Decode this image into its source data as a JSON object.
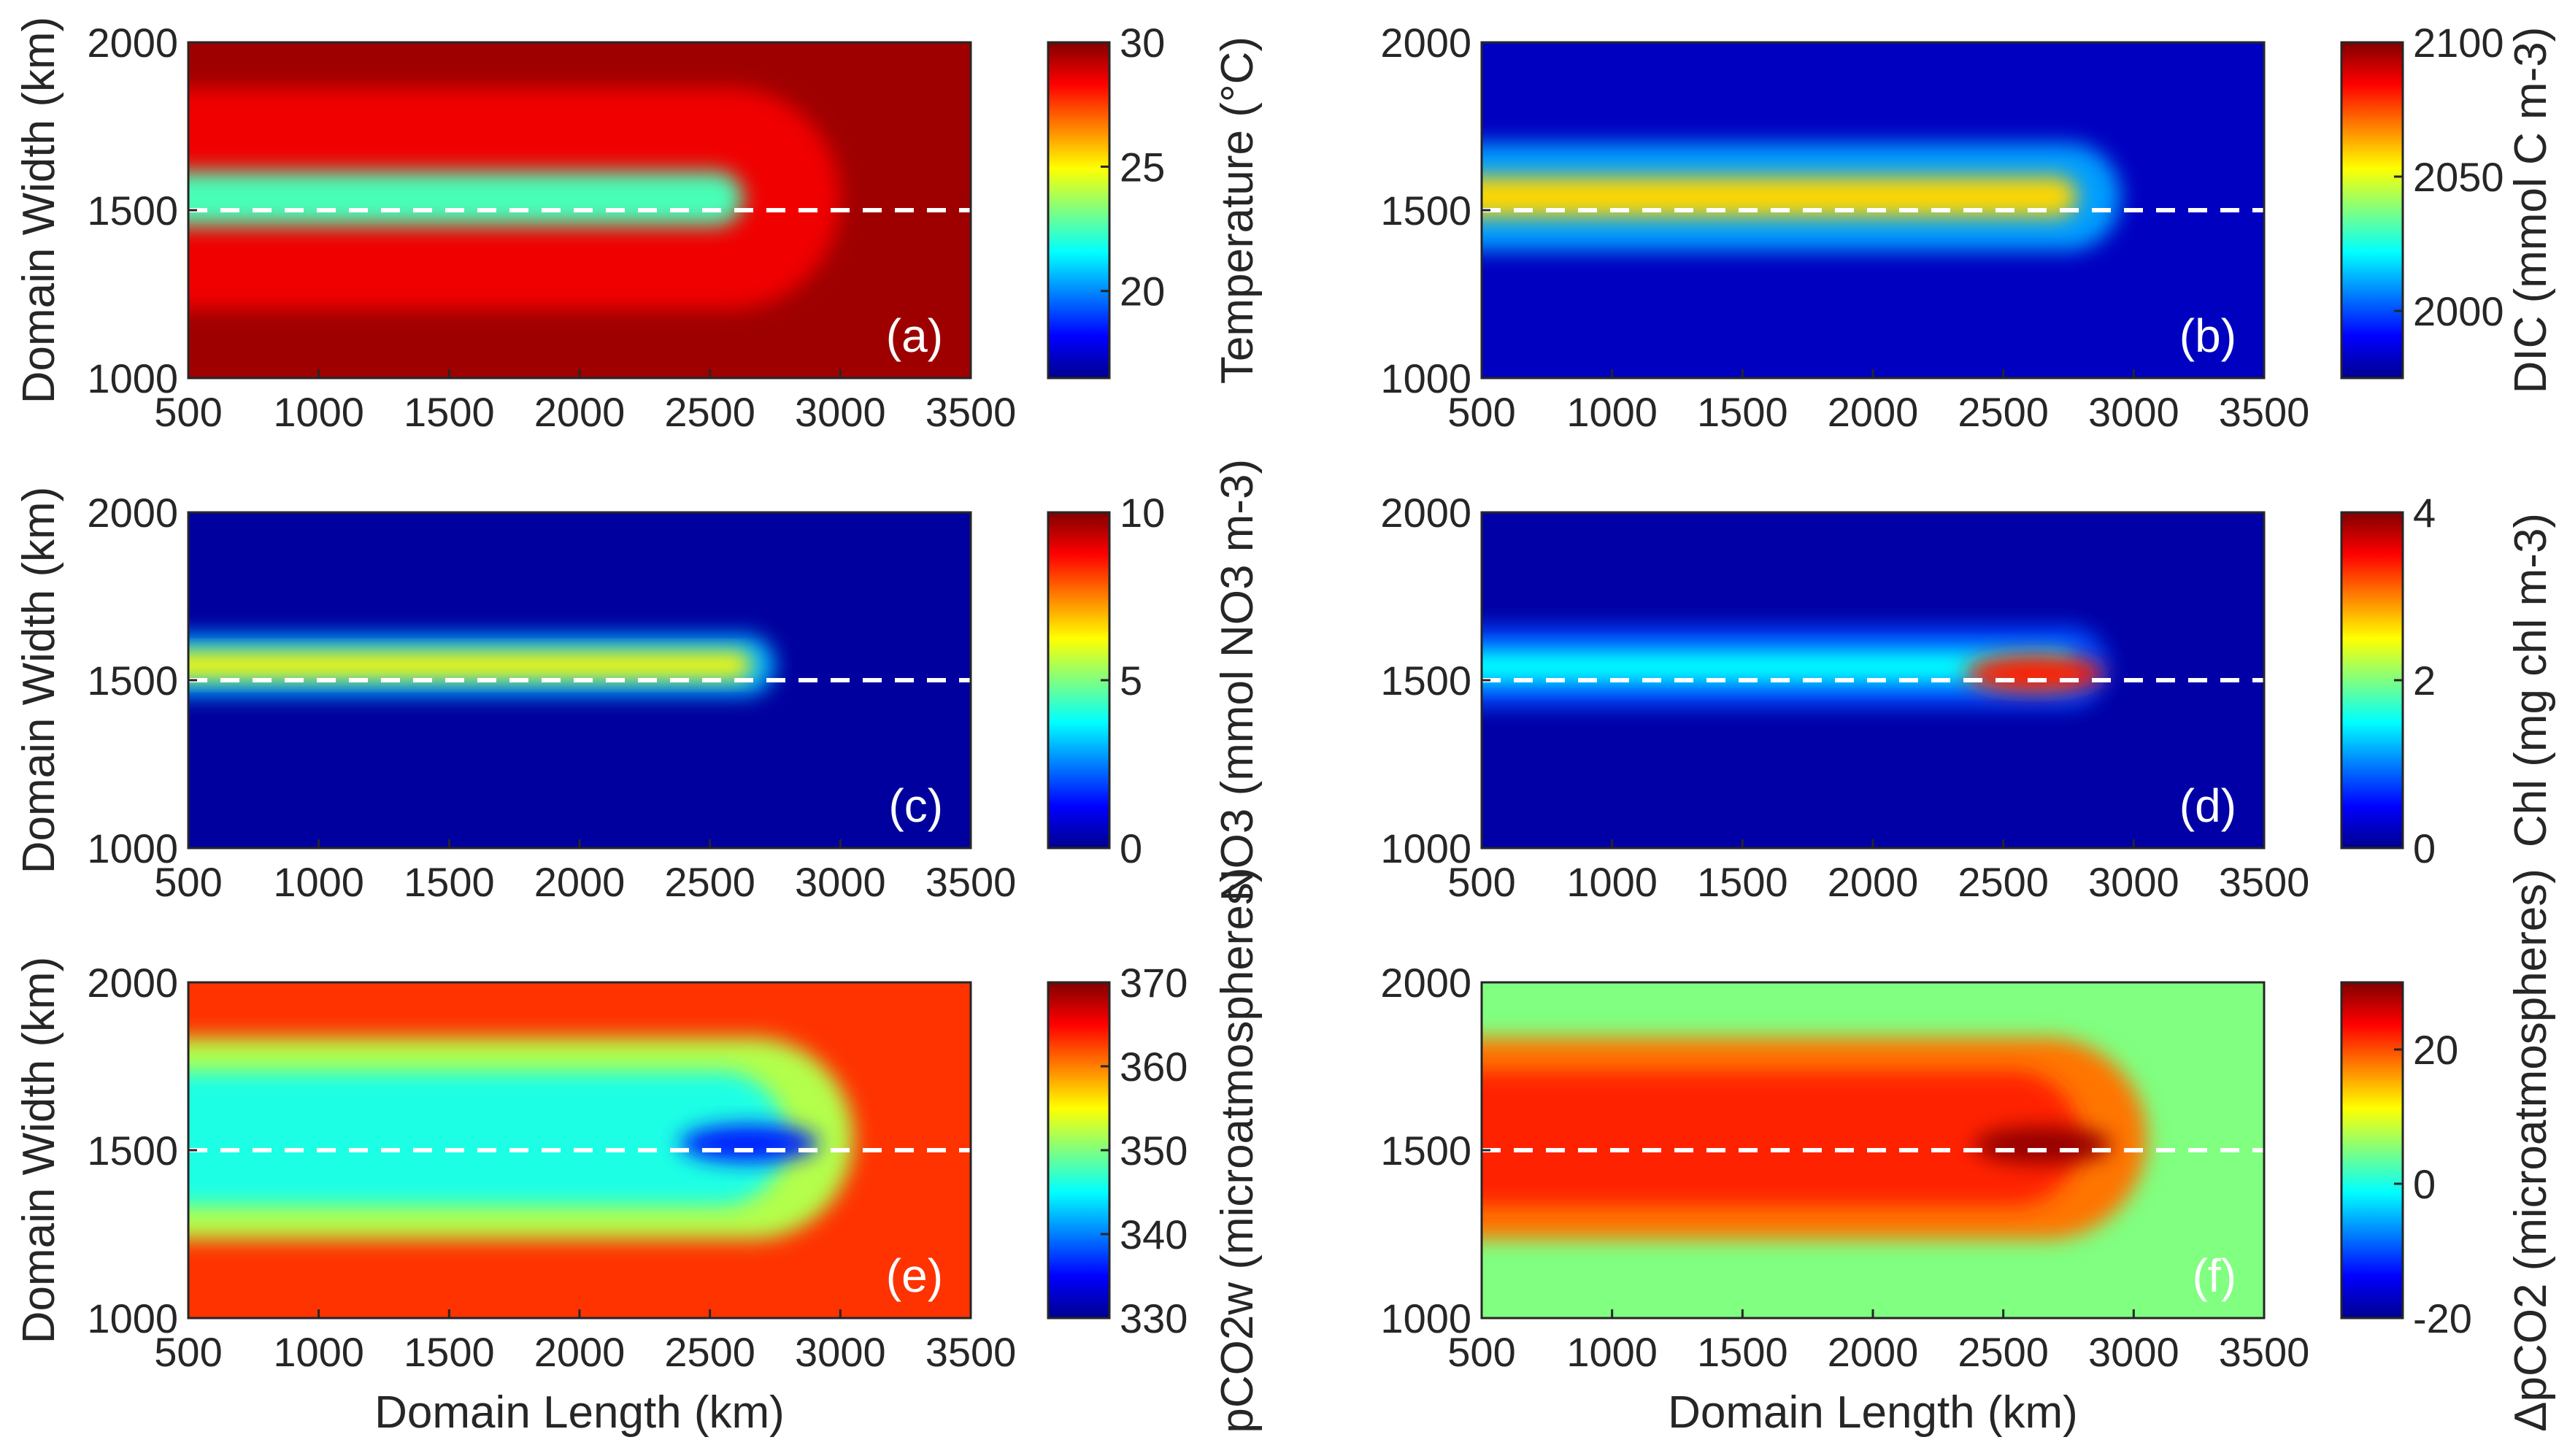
{
  "chart_data": [
    {
      "type": "heatmap",
      "panel_label": "(a)",
      "xlabel": "",
      "ylabel": "Domain Width (km)",
      "xlim": [
        500,
        3500
      ],
      "ylim": [
        1000,
        2000
      ],
      "x_ticks": [
        "500",
        "1000",
        "1500",
        "2000",
        "2500",
        "3000",
        "3500"
      ],
      "y_ticks": [
        "1000",
        "1500",
        "2000"
      ],
      "colorbar_label": "Temperature (°C)",
      "clim": [
        16.5,
        30
      ],
      "colorbar_ticks": [
        "20",
        "25",
        "30"
      ],
      "reference_line_y": 1500,
      "background_value": 29.6,
      "plume": {
        "x_start": 500,
        "x_end": 3000,
        "y_center": 1535,
        "core_half_width": 80,
        "outer_half_width": 330,
        "core_value": 22.5,
        "edge_value": 28.5,
        "hotspot": null
      }
    },
    {
      "type": "heatmap",
      "panel_label": "(b)",
      "xlabel": "",
      "ylabel": "",
      "xlim": [
        500,
        3500
      ],
      "ylim": [
        1000,
        2000
      ],
      "x_ticks": [
        "500",
        "1000",
        "1500",
        "2000",
        "2500",
        "3000",
        "3500"
      ],
      "y_ticks": [
        "1000",
        "1500",
        "2000"
      ],
      "colorbar_label": "DIC (mmol C m-3)",
      "clim": [
        1975,
        2100
      ],
      "colorbar_ticks": [
        "2000",
        "2050",
        "2100"
      ],
      "reference_line_y": 1500,
      "background_value": 1983,
      "plume": {
        "x_start": 500,
        "x_end": 2950,
        "y_center": 1540,
        "core_half_width": 60,
        "outer_half_width": 160,
        "core_value": 2058,
        "edge_value": 2010,
        "hotspot": null
      }
    },
    {
      "type": "heatmap",
      "panel_label": "(c)",
      "xlabel": "",
      "ylabel": "Domain Width (km)",
      "xlim": [
        500,
        3500
      ],
      "ylim": [
        1000,
        2000
      ],
      "x_ticks": [
        "500",
        "1000",
        "1500",
        "2000",
        "2500",
        "3000",
        "3500"
      ],
      "y_ticks": [
        "1000",
        "1500",
        "2000"
      ],
      "colorbar_label": "NO3 (mmol NO3 m-3)",
      "clim": [
        0,
        10
      ],
      "colorbar_ticks": [
        "0",
        "5",
        "10"
      ],
      "reference_line_y": 1500,
      "background_value": 0.3,
      "plume": {
        "x_start": 500,
        "x_end": 2750,
        "y_center": 1545,
        "core_half_width": 40,
        "outer_half_width": 90,
        "core_value": 6.3,
        "edge_value": 3,
        "hotspot": null
      }
    },
    {
      "type": "heatmap",
      "panel_label": "(d)",
      "xlabel": "",
      "ylabel": "",
      "xlim": [
        500,
        3500
      ],
      "ylim": [
        1000,
        2000
      ],
      "x_ticks": [
        "500",
        "1000",
        "1500",
        "2000",
        "2500",
        "3000",
        "3500"
      ],
      "y_ticks": [
        "1000",
        "1500",
        "2000"
      ],
      "colorbar_label": "Chl (mg chl m-3)",
      "clim": [
        0,
        4
      ],
      "colorbar_ticks": [
        "0",
        "2",
        "4"
      ],
      "reference_line_y": 1500,
      "background_value": 0.15,
      "plume": {
        "x_start": 500,
        "x_end": 2900,
        "y_center": 1540,
        "core_half_width": 50,
        "outer_half_width": 120,
        "core_value": 1.5,
        "edge_value": 0.8,
        "hotspot": {
          "x": 2620,
          "y": 1520,
          "value": 3.4
        }
      }
    },
    {
      "type": "heatmap",
      "panel_label": "(e)",
      "xlabel": "Domain Length (km)",
      "ylabel": "Domain Width (km)",
      "xlim": [
        500,
        3500
      ],
      "ylim": [
        1000,
        2000
      ],
      "x_ticks": [
        "500",
        "1000",
        "1500",
        "2000",
        "2500",
        "3000",
        "3500"
      ],
      "y_ticks": [
        "1000",
        "1500",
        "2000"
      ],
      "colorbar_label": "pCO2w (microatmospheres)",
      "clim": [
        330,
        370
      ],
      "colorbar_ticks": [
        "330",
        "340",
        "350",
        "360",
        "370"
      ],
      "reference_line_y": 1500,
      "background_value": 363,
      "plume": {
        "x_start": 500,
        "x_end": 3050,
        "y_center": 1535,
        "core_half_width": 200,
        "outer_half_width": 300,
        "core_value": 346,
        "edge_value": 352,
        "hotspot": {
          "x": 2650,
          "y": 1520,
          "value": 336
        }
      }
    },
    {
      "type": "heatmap",
      "panel_label": "(f)",
      "xlabel": "Domain Length (km)",
      "ylabel": "",
      "xlim": [
        500,
        3500
      ],
      "ylim": [
        1000,
        2000
      ],
      "x_ticks": [
        "500",
        "1000",
        "1500",
        "2000",
        "2500",
        "3000",
        "3500"
      ],
      "y_ticks": [
        "1000",
        "1500",
        "2000"
      ],
      "colorbar_label": "ΔpCO2 (microatmospheres)",
      "clim": [
        -20,
        30
      ],
      "colorbar_ticks": [
        "-20",
        "0",
        "20"
      ],
      "reference_line_y": 1500,
      "background_value": 5,
      "plume": {
        "x_start": 500,
        "x_end": 3050,
        "y_center": 1535,
        "core_half_width": 200,
        "outer_half_width": 300,
        "core_value": 22,
        "edge_value": 18,
        "hotspot": {
          "x": 2650,
          "y": 1515,
          "value": 29
        }
      }
    }
  ]
}
